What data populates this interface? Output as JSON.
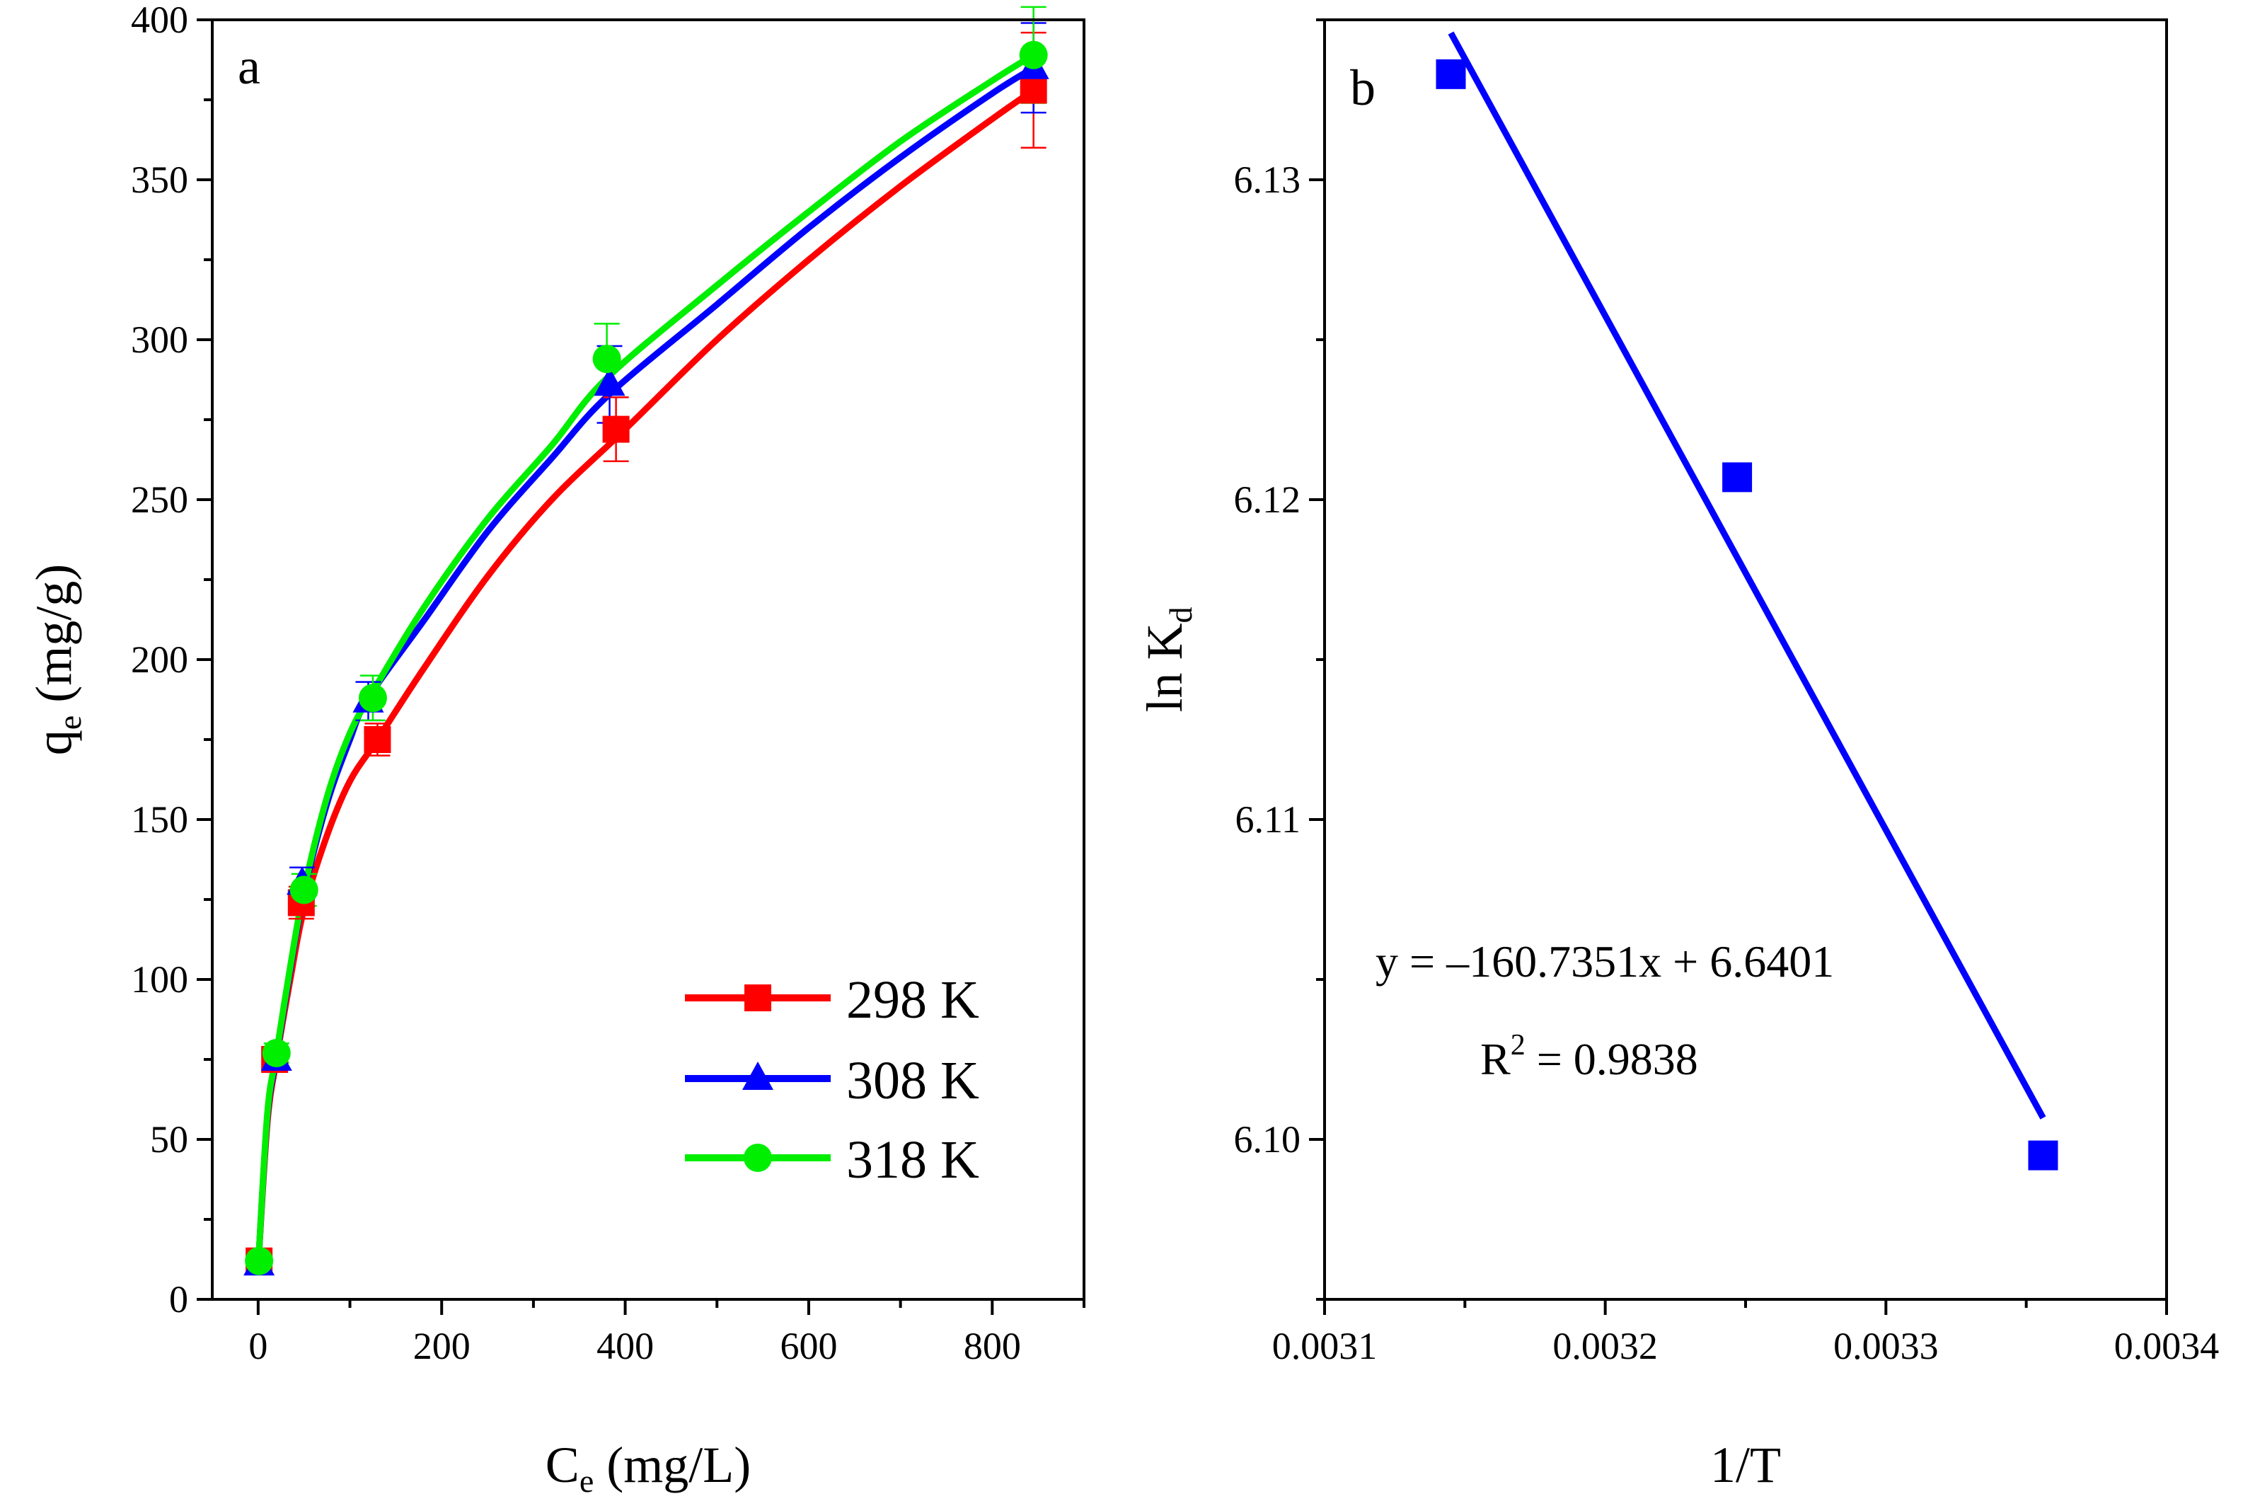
{
  "chart_data": [
    {
      "panel": "a",
      "type": "line",
      "xlabel": "C",
      "xlabel_sub": "e",
      "xlabel_unit": " (mg/L)",
      "ylabel": "q",
      "ylabel_sub": "e",
      "ylabel_unit": " (mg/g)",
      "xlim": [
        -50,
        900
      ],
      "ylim": [
        0,
        400
      ],
      "xticks": [
        0,
        200,
        400,
        600,
        800
      ],
      "yticks": [
        0,
        50,
        100,
        150,
        200,
        250,
        300,
        350,
        400
      ],
      "legend_position": "bottom-right",
      "series": [
        {
          "name": "298 K",
          "color": "#ff0000",
          "marker": "square",
          "x": [
            1,
            18,
            47,
            130,
            390,
            845
          ],
          "y": [
            12,
            75,
            124,
            175,
            272,
            378
          ],
          "err": [
            3,
            3,
            5,
            5,
            10,
            18
          ],
          "fit_x": [
            0,
            10,
            20,
            35,
            50,
            75,
            100,
            130,
            180,
            250,
            320,
            400,
            500,
            600,
            700,
            800,
            845
          ],
          "fit_y": [
            10,
            55,
            75,
            100,
            122,
            145,
            162,
            175,
            197,
            226,
            250,
            272,
            300,
            325,
            348,
            369,
            378
          ]
        },
        {
          "name": "308 K",
          "color": "#0000ff",
          "marker": "triangle",
          "x": [
            1,
            20,
            48,
            120,
            383,
            845
          ],
          "y": [
            11,
            75,
            130,
            187,
            286,
            385
          ],
          "err": [
            3,
            3,
            5,
            6,
            12,
            14
          ],
          "fit_x": [
            0,
            10,
            20,
            35,
            50,
            75,
            100,
            120,
            180,
            250,
            320,
            383,
            500,
            600,
            700,
            800,
            845
          ],
          "fit_y": [
            10,
            57,
            76,
            103,
            127,
            155,
            175,
            188,
            212,
            240,
            263,
            283,
            311,
            335,
            357,
            377,
            385
          ]
        },
        {
          "name": "318 K",
          "color": "#00ee00",
          "marker": "circle",
          "x": [
            1,
            20,
            50,
            125,
            380,
            845
          ],
          "y": [
            12,
            77,
            128,
            188,
            294,
            389
          ],
          "err": [
            3,
            3,
            5,
            7,
            11,
            15
          ],
          "fit_x": [
            0,
            10,
            20,
            35,
            50,
            75,
            100,
            125,
            180,
            250,
            320,
            380,
            500,
            600,
            700,
            800,
            845
          ],
          "fit_y": [
            10,
            58,
            77,
            104,
            128,
            157,
            177,
            190,
            216,
            244,
            267,
            288,
            317,
            340,
            362,
            381,
            389
          ]
        }
      ]
    },
    {
      "panel": "b",
      "type": "scatter",
      "xlabel": "1/T",
      "ylabel": "ln K",
      "ylabel_sub": "d",
      "xlim": [
        0.0031,
        0.0034
      ],
      "ylim": [
        6.095,
        6.135
      ],
      "xticks": [
        "0.0031",
        "0.0032",
        "0.0033",
        "0.0034"
      ],
      "yticks": [
        "6.10",
        "6.11",
        "6.12",
        "6.13"
      ],
      "marker_color": "#0000ff",
      "line_color": "#0000ff",
      "points": {
        "x": [
          0.003145,
          0.003247,
          0.003356
        ],
        "y": [
          6.1333,
          6.1207,
          6.0995
        ]
      },
      "fit": {
        "x": [
          0.003145,
          0.003356
        ],
        "slope": -160.7351,
        "intercept": 6.6401
      },
      "equation": "y = –160.7351x + 6.6401",
      "r2_label": "R",
      "r2_sup": "2",
      "r2_value": " = 0.9838"
    }
  ]
}
